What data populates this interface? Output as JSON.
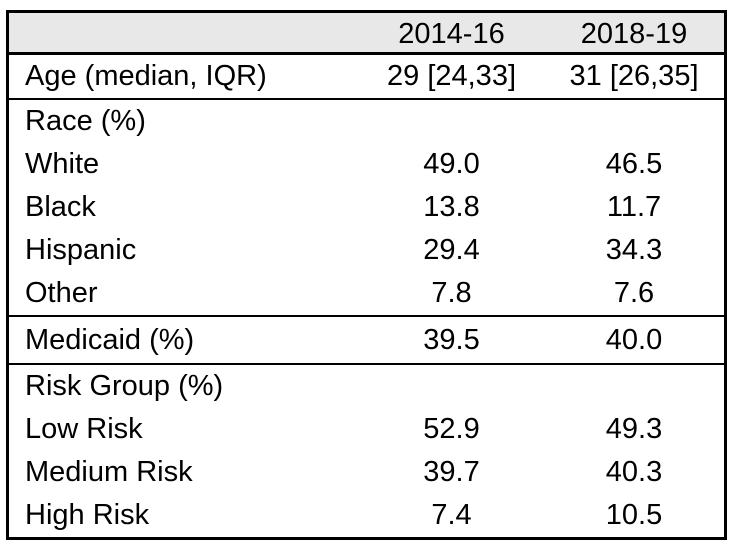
{
  "table": {
    "columns": [
      "",
      "2014-16",
      "2018-19"
    ],
    "colors": {
      "header_bg": "#e8e8e8",
      "border": "#000000",
      "text": "#000000"
    },
    "sections": [
      {
        "name": "age",
        "rows": [
          {
            "label": "Age (median, IQR)",
            "values": [
              "29 [24,33]",
              "31 [26,35]"
            ]
          }
        ]
      },
      {
        "name": "race",
        "rows": [
          {
            "label": "Race (%)",
            "values": [
              "",
              ""
            ]
          },
          {
            "label": "White",
            "values": [
              "49.0",
              "46.5"
            ]
          },
          {
            "label": "Black",
            "values": [
              "13.8",
              "11.7"
            ]
          },
          {
            "label": "Hispanic",
            "values": [
              "29.4",
              "34.3"
            ]
          },
          {
            "label": "Other",
            "values": [
              "7.8",
              "7.6"
            ]
          }
        ]
      },
      {
        "name": "medicaid",
        "rows": [
          {
            "label": "Medicaid (%)",
            "values": [
              "39.5",
              "40.0"
            ]
          }
        ]
      },
      {
        "name": "risk-group",
        "rows": [
          {
            "label": "Risk Group (%)",
            "values": [
              "",
              ""
            ]
          },
          {
            "label": "Low Risk",
            "values": [
              "52.9",
              "49.3"
            ]
          },
          {
            "label": "Medium Risk",
            "values": [
              "39.7",
              "40.3"
            ]
          },
          {
            "label": "High Risk",
            "values": [
              "7.4",
              "10.5"
            ]
          }
        ]
      }
    ]
  }
}
